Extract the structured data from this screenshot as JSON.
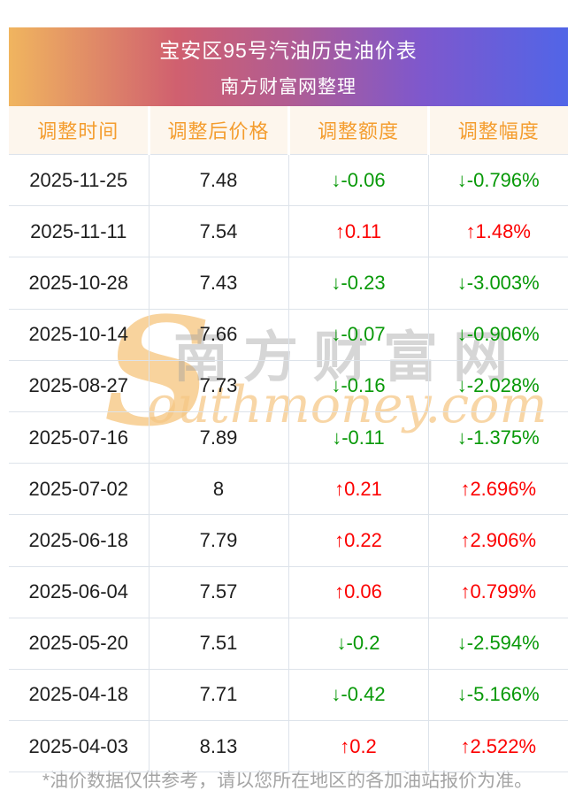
{
  "banner": {
    "title": "宝安区95号汽油历史油价表",
    "subtitle": "南方财富网整理"
  },
  "table": {
    "headers": [
      "调整时间",
      "调整后价格",
      "调整额度",
      "调整幅度"
    ],
    "rows": [
      {
        "date": "2025-11-25",
        "price": "7.48",
        "change": "↓-0.06",
        "percent": "↓-0.796%",
        "direction": "down"
      },
      {
        "date": "2025-11-11",
        "price": "7.54",
        "change": "↑0.11",
        "percent": "↑1.48%",
        "direction": "up"
      },
      {
        "date": "2025-10-28",
        "price": "7.43",
        "change": "↓-0.23",
        "percent": "↓-3.003%",
        "direction": "down"
      },
      {
        "date": "2025-10-14",
        "price": "7.66",
        "change": "↓-0.07",
        "percent": "↓-0.906%",
        "direction": "down"
      },
      {
        "date": "2025-08-27",
        "price": "7.73",
        "change": "↓-0.16",
        "percent": "↓-2.028%",
        "direction": "down"
      },
      {
        "date": "2025-07-16",
        "price": "7.89",
        "change": "↓-0.11",
        "percent": "↓-1.375%",
        "direction": "down"
      },
      {
        "date": "2025-07-02",
        "price": "8",
        "change": "↑0.21",
        "percent": "↑2.696%",
        "direction": "up"
      },
      {
        "date": "2025-06-18",
        "price": "7.79",
        "change": "↑0.22",
        "percent": "↑2.906%",
        "direction": "up"
      },
      {
        "date": "2025-06-04",
        "price": "7.57",
        "change": "↑0.06",
        "percent": "↑0.799%",
        "direction": "up"
      },
      {
        "date": "2025-05-20",
        "price": "7.51",
        "change": "↓-0.2",
        "percent": "↓-2.594%",
        "direction": "down"
      },
      {
        "date": "2025-04-18",
        "price": "7.71",
        "change": "↓-0.42",
        "percent": "↓-5.166%",
        "direction": "down"
      },
      {
        "date": "2025-04-03",
        "price": "8.13",
        "change": "↑0.2",
        "percent": "↑2.522%",
        "direction": "up"
      }
    ]
  },
  "watermark": {
    "initial": "S",
    "cn": "南方财富网",
    "en": "outhmoney.com"
  },
  "footnote": "*油价数据仅供参考，请以您所在地区的各加油站报价为准。",
  "colors": {
    "up": "#fc0000",
    "down": "#089908",
    "header_text": "#f49d2f",
    "header_bg": "#fdf6ed",
    "border": "#dde3ea",
    "banner_gradient": [
      "#f0b55f",
      "#d0606f",
      "#b15c92",
      "#7e58cd",
      "#5165e7"
    ],
    "footnote_text": "#a5a5a5"
  },
  "chart_data": {
    "type": "table",
    "title": "宝安区95号汽油历史油价表",
    "subtitle": "南方财富网整理",
    "columns": [
      "调整时间",
      "调整后价格",
      "调整额度",
      "调整幅度"
    ],
    "rows": [
      [
        "2025-11-25",
        7.48,
        -0.06,
        "-0.796%"
      ],
      [
        "2025-11-11",
        7.54,
        0.11,
        "1.48%"
      ],
      [
        "2025-10-28",
        7.43,
        -0.23,
        "-3.003%"
      ],
      [
        "2025-10-14",
        7.66,
        -0.07,
        "-0.906%"
      ],
      [
        "2025-08-27",
        7.73,
        -0.16,
        "-2.028%"
      ],
      [
        "2025-07-16",
        7.89,
        -0.11,
        "-1.375%"
      ],
      [
        "2025-07-02",
        8,
        0.21,
        "2.696%"
      ],
      [
        "2025-06-18",
        7.79,
        0.22,
        "2.906%"
      ],
      [
        "2025-06-04",
        7.57,
        0.06,
        "0.799%"
      ],
      [
        "2025-05-20",
        7.51,
        -0.2,
        "-2.594%"
      ],
      [
        "2025-04-18",
        7.71,
        -0.42,
        "-5.166%"
      ],
      [
        "2025-04-03",
        8.13,
        0.2,
        "2.522%"
      ]
    ]
  }
}
